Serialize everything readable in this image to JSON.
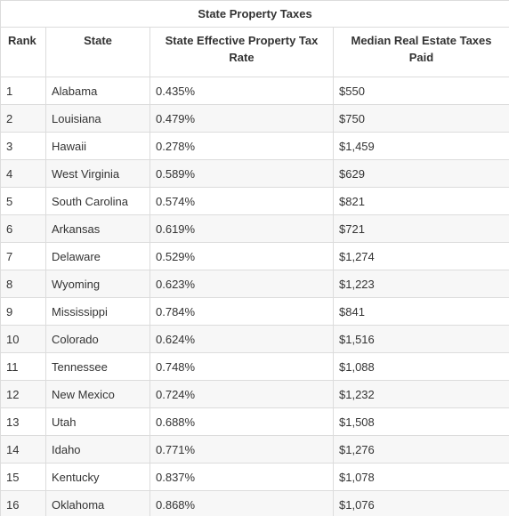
{
  "table": {
    "title": "State Property Taxes",
    "headers": {
      "rank": "Rank",
      "state": "State",
      "rate": "State Effective Property Tax Rate",
      "paid": "Median Real Estate Taxes Paid"
    },
    "rows": [
      {
        "rank": "1",
        "state": "Alabama",
        "rate": "0.435%",
        "paid": "$550"
      },
      {
        "rank": "2",
        "state": "Louisiana",
        "rate": "0.479%",
        "paid": "$750"
      },
      {
        "rank": "3",
        "state": "Hawaii",
        "rate": "0.278%",
        "paid": "$1,459"
      },
      {
        "rank": "4",
        "state": "West Virginia",
        "rate": "0.589%",
        "paid": "$629"
      },
      {
        "rank": "5",
        "state": "South Carolina",
        "rate": "0.574%",
        "paid": "$821"
      },
      {
        "rank": "6",
        "state": "Arkansas",
        "rate": "0.619%",
        "paid": "$721"
      },
      {
        "rank": "7",
        "state": "Delaware",
        "rate": "0.529%",
        "paid": "$1,274"
      },
      {
        "rank": "8",
        "state": "Wyoming",
        "rate": "0.623%",
        "paid": "$1,223"
      },
      {
        "rank": "9",
        "state": "Mississippi",
        "rate": "0.784%",
        "paid": "$841"
      },
      {
        "rank": "10",
        "state": "Colorado",
        "rate": "0.624%",
        "paid": "$1,516"
      },
      {
        "rank": "11",
        "state": "Tennessee",
        "rate": "0.748%",
        "paid": "$1,088"
      },
      {
        "rank": "12",
        "state": "New Mexico",
        "rate": "0.724%",
        "paid": "$1,232"
      },
      {
        "rank": "13",
        "state": "Utah",
        "rate": "0.688%",
        "paid": "$1,508"
      },
      {
        "rank": "14",
        "state": "Idaho",
        "rate": "0.771%",
        "paid": "$1,276"
      },
      {
        "rank": "15",
        "state": "Kentucky",
        "rate": "0.837%",
        "paid": "$1,078"
      },
      {
        "rank": "16",
        "state": "Oklahoma",
        "rate": "0.868%",
        "paid": "$1,076"
      }
    ]
  }
}
